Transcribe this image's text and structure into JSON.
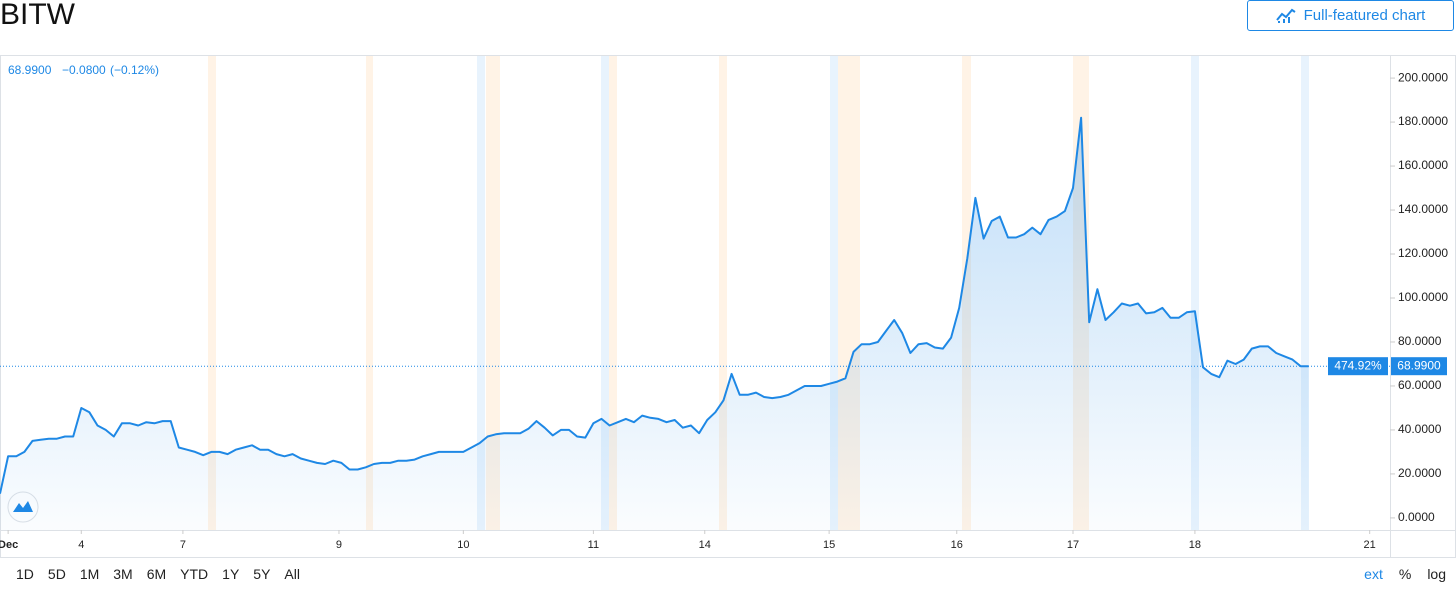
{
  "chart_data": {
    "type": "line",
    "title": "BITW",
    "button": "Full-featured chart",
    "quote": {
      "price": "68.9900",
      "change": "−0.0800",
      "percent": "(−0.12%)"
    },
    "color": "#1e88e5",
    "series": [
      {
        "name": "BITW",
        "color": "#1e88e5",
        "values": [
          11,
          28,
          28,
          30,
          35,
          35.5,
          36,
          36,
          37,
          37,
          50,
          48,
          42,
          40,
          37,
          43,
          43,
          42,
          43.5,
          43,
          44,
          44,
          32,
          31,
          30,
          28.5,
          30,
          30,
          29,
          31,
          32,
          33,
          31,
          31,
          29,
          28,
          29,
          27,
          26,
          25,
          24.5,
          26,
          25,
          22,
          22,
          23,
          24.5,
          25,
          25,
          26,
          26,
          26.5,
          28,
          29,
          30,
          30,
          30,
          30,
          32,
          34,
          37,
          38,
          38.5,
          38.5,
          38.5,
          40.5,
          44,
          41,
          37.5,
          40,
          40,
          37,
          36.5,
          43,
          45,
          42,
          43.5,
          45,
          43.5,
          46.5,
          45.5,
          45,
          43.5,
          44.5,
          41,
          42,
          38.5,
          44.5,
          48,
          53.5,
          65.5,
          56,
          56,
          57,
          55,
          54.5,
          55,
          56,
          58,
          60,
          60,
          60,
          61,
          62,
          63.5,
          75.5,
          79,
          79,
          80,
          85,
          90,
          84,
          75,
          79,
          79.5,
          77.5,
          77,
          82,
          95.5,
          118,
          145.5,
          127,
          135,
          137,
          127.5,
          127.5,
          129,
          132,
          129,
          135.5,
          137,
          139.5,
          150,
          182,
          89,
          104,
          90,
          93.5,
          97.5,
          96.5,
          97.5,
          93,
          93.5,
          95.5,
          91,
          91,
          93.5,
          94,
          68.5,
          65.5,
          64,
          71.5,
          70,
          72,
          77,
          78,
          78,
          75,
          73.5,
          72,
          69,
          69
        ]
      }
    ],
    "xlim": [
      0,
      171
    ],
    "xticks": [
      {
        "value": 1,
        "label": "Dec"
      },
      {
        "value": 10,
        "label": "4"
      },
      {
        "value": 22.5,
        "label": "7"
      },
      {
        "value": 41.7,
        "label": "9"
      },
      {
        "value": 57,
        "label": "10"
      },
      {
        "value": 73,
        "label": "11"
      },
      {
        "value": 86.7,
        "label": "14"
      },
      {
        "value": 102,
        "label": "15"
      },
      {
        "value": 117.7,
        "label": "16"
      },
      {
        "value": 132,
        "label": "17"
      },
      {
        "value": 147,
        "label": "18"
      },
      {
        "value": 168.5,
        "label": "21"
      }
    ],
    "ylim": [
      -5.5,
      210.5
    ],
    "yticks": [
      {
        "value": 0,
        "label": "0.0000"
      },
      {
        "value": 20,
        "label": "20.0000"
      },
      {
        "value": 40,
        "label": "40.0000"
      },
      {
        "value": 60,
        "label": "60.0000"
      },
      {
        "value": 80,
        "label": "80.0000"
      },
      {
        "value": 100,
        "label": "100.0000"
      },
      {
        "value": 120,
        "label": "120.0000"
      },
      {
        "value": 140,
        "label": "140.0000"
      },
      {
        "value": 160,
        "label": "160.0000"
      },
      {
        "value": 180,
        "label": "180.0000"
      },
      {
        "value": 200,
        "label": "200.0000"
      }
    ],
    "price_line": {
      "value": 68.99,
      "label": "68.9900",
      "percent_label": "474.92%"
    },
    "range_buttons": [
      "1D",
      "5D",
      "1M",
      "3M",
      "6M",
      "YTD",
      "1Y",
      "5Y",
      "All"
    ],
    "options": [
      "ext",
      "%",
      "log"
    ]
  }
}
